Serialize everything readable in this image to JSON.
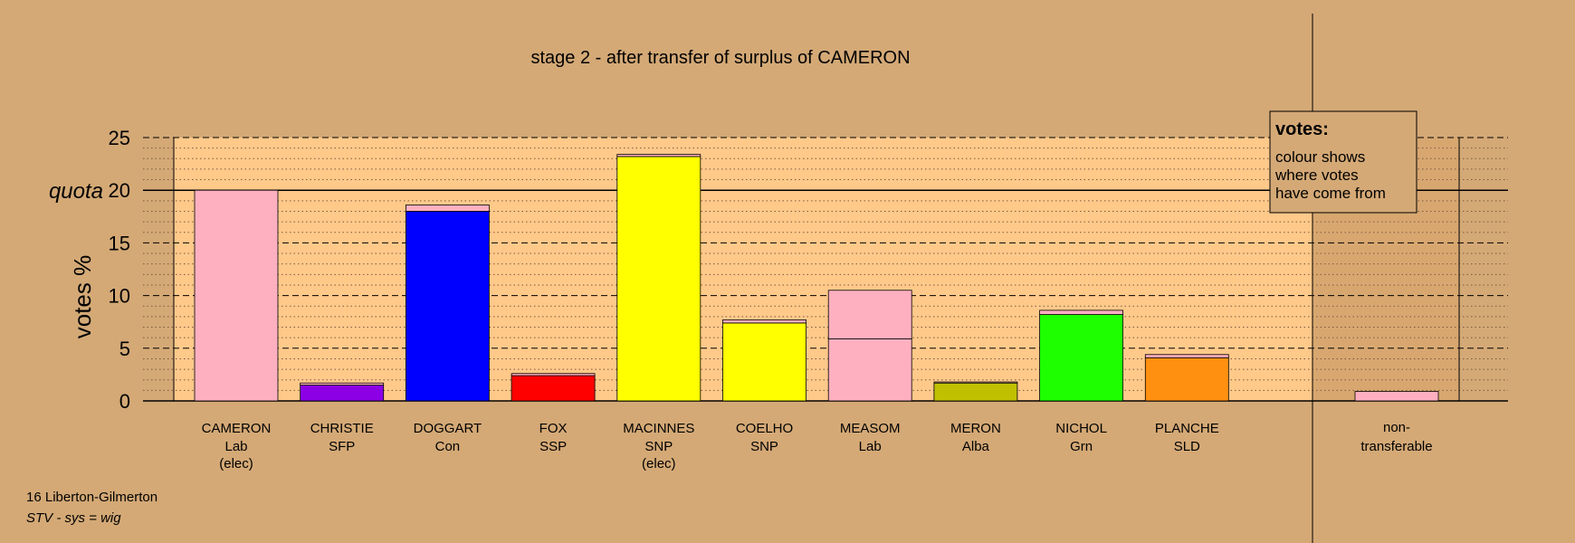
{
  "chart_data": {
    "type": "bar",
    "title": "stage 2 - after transfer of surplus of CAMERON",
    "ylabel": "votes %",
    "ylim": [
      0,
      25
    ],
    "yticks": [
      0,
      5,
      10,
      15,
      20,
      25
    ],
    "quota_label": "quota",
    "quota_value": 20,
    "grid": true,
    "legend": {
      "position": "top-right",
      "title": "votes:",
      "lines": [
        "colour shows",
        "where votes",
        "have come from"
      ]
    },
    "footer": {
      "constituency": "16 Liberton-Gilmerton",
      "system": "STV - sys = wig"
    },
    "candidates": [
      {
        "name": "CAMERON",
        "party": "Lab",
        "note": "(elec)",
        "segments": [
          {
            "value": 20.0,
            "color": "#FFB0C0"
          }
        ]
      },
      {
        "name": "CHRISTIE",
        "party": "SFP",
        "note": "",
        "segments": [
          {
            "value": 1.5,
            "color": "#8C00E6"
          },
          {
            "value": 0.2,
            "color": "#FFB0C0"
          }
        ]
      },
      {
        "name": "DOGGART",
        "party": "Con",
        "note": "",
        "segments": [
          {
            "value": 18.0,
            "color": "#0000FF"
          },
          {
            "value": 0.6,
            "color": "#FFB0C0"
          }
        ]
      },
      {
        "name": "FOX",
        "party": "SSP",
        "note": "",
        "segments": [
          {
            "value": 2.4,
            "color": "#FF0000"
          },
          {
            "value": 0.2,
            "color": "#FFB0C0"
          }
        ]
      },
      {
        "name": "MACINNES",
        "party": "SNP",
        "note": "(elec)",
        "segments": [
          {
            "value": 23.2,
            "color": "#FFFF00"
          },
          {
            "value": 0.2,
            "color": "#FFB0C0"
          }
        ]
      },
      {
        "name": "COELHO",
        "party": "SNP",
        "note": "",
        "segments": [
          {
            "value": 7.4,
            "color": "#FFFF00"
          },
          {
            "value": 0.3,
            "color": "#FFB0C0"
          }
        ]
      },
      {
        "name": "MEASOM",
        "party": "Lab",
        "note": "",
        "segments": [
          {
            "value": 5.9,
            "color": "#FFB0C0"
          },
          {
            "value": 4.6,
            "color": "#FFB0C0"
          }
        ]
      },
      {
        "name": "MERON",
        "party": "Alba",
        "note": "",
        "segments": [
          {
            "value": 1.7,
            "color": "#C0C000"
          },
          {
            "value": 0.1,
            "color": "#FFB0C0"
          }
        ]
      },
      {
        "name": "NICHOL",
        "party": "Grn",
        "note": "",
        "segments": [
          {
            "value": 8.2,
            "color": "#1EFF00"
          },
          {
            "value": 0.4,
            "color": "#FFB0C0"
          }
        ]
      },
      {
        "name": "PLANCHE",
        "party": "SLD",
        "note": "",
        "segments": [
          {
            "value": 4.1,
            "color": "#FF9010"
          },
          {
            "value": 0.3,
            "color": "#FFB0C0"
          }
        ]
      }
    ],
    "nontransferable": {
      "label_line1": "non-",
      "label_line2": "transferable",
      "value": 0.9,
      "color": "#FFB0C0"
    }
  }
}
